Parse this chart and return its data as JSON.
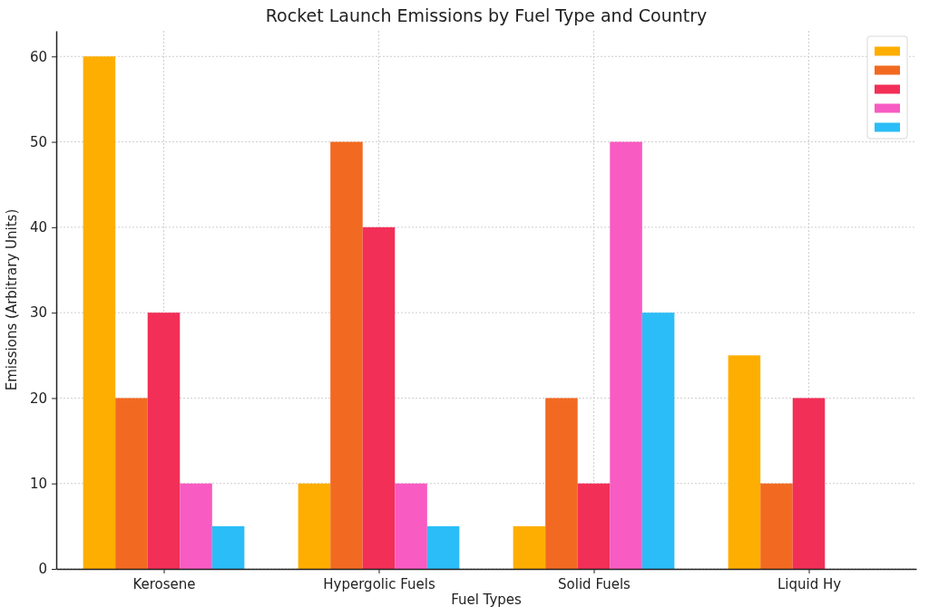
{
  "chart_data": {
    "type": "bar",
    "title": "Rocket Launch Emissions by Fuel Type and Country",
    "xlabel": "Fuel Types",
    "ylabel": "Emissions (Arbitrary Units)",
    "categories": [
      "Kerosene",
      "Hypergolic Fuels",
      "Solid Fuels",
      "Liquid Hy"
    ],
    "series": [
      {
        "color": "#feae00",
        "values": [
          60,
          10,
          5,
          25
        ]
      },
      {
        "color": "#f26a21",
        "values": [
          20,
          50,
          20,
          10
        ]
      },
      {
        "color": "#f22f57",
        "values": [
          30,
          40,
          10,
          20
        ]
      },
      {
        "color": "#f85bc2",
        "values": [
          10,
          10,
          50,
          null
        ]
      },
      {
        "color": "#2bbdf7",
        "values": [
          5,
          5,
          30,
          null
        ]
      }
    ],
    "ylim": [
      0,
      63
    ],
    "yticks": [
      0,
      10,
      20,
      30,
      40,
      50,
      60
    ],
    "grid": true
  }
}
